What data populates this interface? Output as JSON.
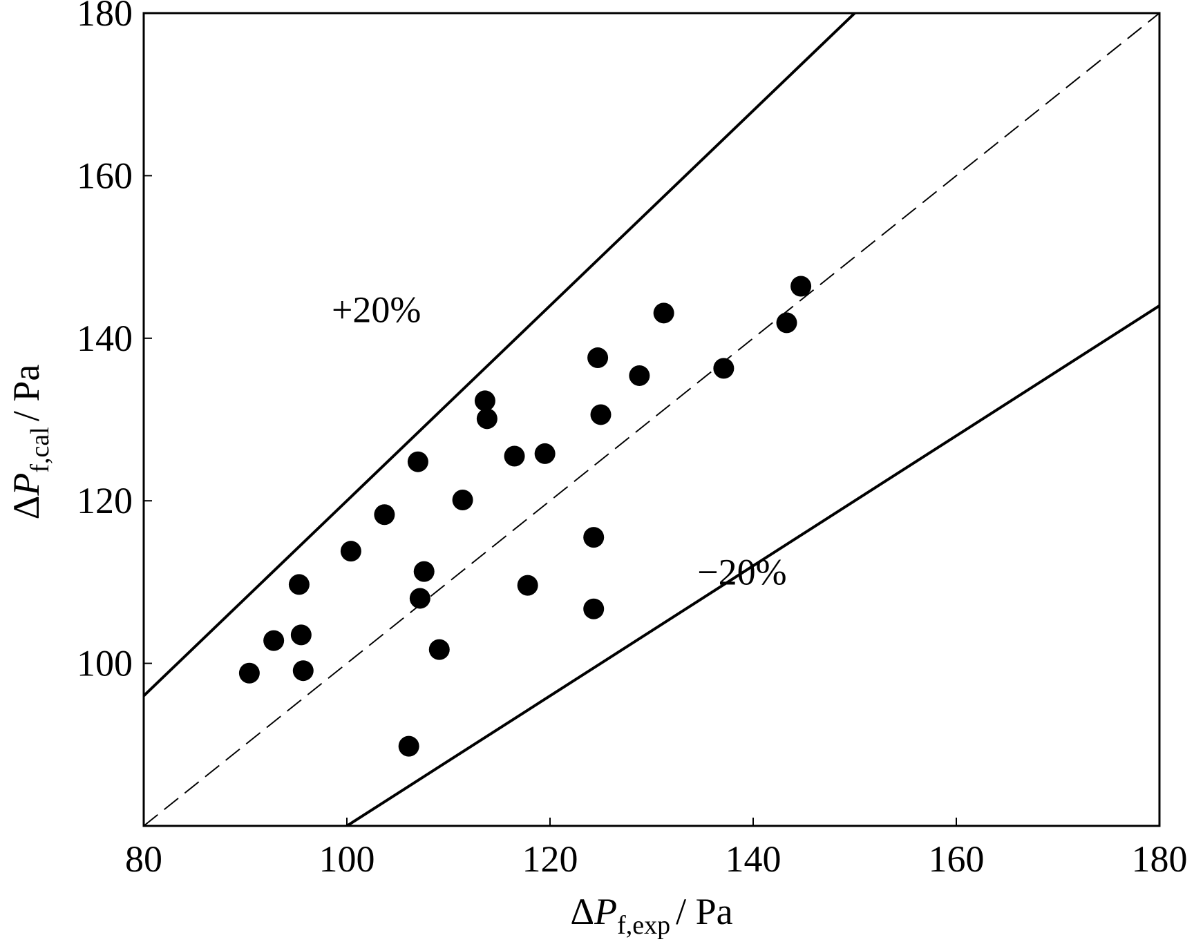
{
  "chart_data": {
    "type": "scatter",
    "xlabel": {
      "symbol": "Δ",
      "var": "P",
      "sub": "f,exp",
      "unit": "/ Pa"
    },
    "ylabel": {
      "symbol": "Δ",
      "var": "P",
      "sub": "f,cal",
      "unit": "/ Pa"
    },
    "xlim": [
      80,
      180
    ],
    "ylim": [
      80,
      180
    ],
    "x_ticks": [
      80,
      100,
      120,
      140,
      160,
      180
    ],
    "y_ticks": [
      100,
      120,
      140,
      160,
      180
    ],
    "grid": false,
    "reference_lines": [
      {
        "label": "+20%",
        "factor": 1.2,
        "style": "solid"
      },
      {
        "label": "",
        "factor": 1.0,
        "style": "dashed"
      },
      {
        "label": "−20%",
        "factor": 0.8,
        "style": "solid"
      }
    ],
    "points": [
      {
        "x": 90.4,
        "y": 98.8
      },
      {
        "x": 92.8,
        "y": 102.8
      },
      {
        "x": 95.3,
        "y": 109.7
      },
      {
        "x": 95.5,
        "y": 103.5
      },
      {
        "x": 95.7,
        "y": 99.1
      },
      {
        "x": 100.4,
        "y": 113.8
      },
      {
        "x": 103.7,
        "y": 118.3
      },
      {
        "x": 106.1,
        "y": 89.8
      },
      {
        "x": 107.0,
        "y": 124.8
      },
      {
        "x": 107.2,
        "y": 108.0
      },
      {
        "x": 107.6,
        "y": 111.3
      },
      {
        "x": 109.1,
        "y": 101.7
      },
      {
        "x": 111.4,
        "y": 120.1
      },
      {
        "x": 113.6,
        "y": 132.3
      },
      {
        "x": 113.8,
        "y": 130.1
      },
      {
        "x": 116.5,
        "y": 125.5
      },
      {
        "x": 117.8,
        "y": 109.6
      },
      {
        "x": 119.5,
        "y": 125.8
      },
      {
        "x": 124.3,
        "y": 115.5
      },
      {
        "x": 124.3,
        "y": 106.7
      },
      {
        "x": 124.7,
        "y": 137.6
      },
      {
        "x": 125.0,
        "y": 130.6
      },
      {
        "x": 128.8,
        "y": 135.4
      },
      {
        "x": 131.2,
        "y": 143.1
      },
      {
        "x": 137.1,
        "y": 136.3
      },
      {
        "x": 143.3,
        "y": 141.9
      },
      {
        "x": 144.7,
        "y": 146.4
      }
    ]
  }
}
